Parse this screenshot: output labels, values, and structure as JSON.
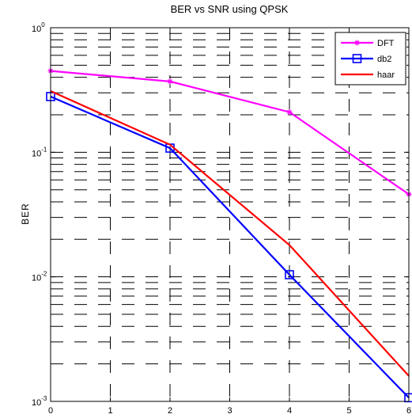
{
  "chart_data": {
    "type": "line",
    "title": "BER vs SNR using QPSK",
    "xlabel": "",
    "ylabel": "BER",
    "xlim": [
      0,
      6
    ],
    "ylim": [
      0.001,
      1
    ],
    "yscale": "log",
    "grid": true,
    "x_ticks": [
      "0",
      "1",
      "2",
      "3",
      "4",
      "5",
      "6"
    ],
    "y_ticks": [
      {
        "base": "10",
        "exp": "-3",
        "value": 0.001
      },
      {
        "base": "10",
        "exp": "-2",
        "value": 0.01
      },
      {
        "base": "10",
        "exp": "-1",
        "value": 0.1
      },
      {
        "base": "10",
        "exp": "0",
        "value": 1
      }
    ],
    "legend_position": "top-right",
    "series": [
      {
        "name": "DFT",
        "color": "#ff00ff",
        "marker": "star",
        "x": [
          0,
          2,
          4,
          6
        ],
        "y": [
          0.45,
          0.37,
          0.21,
          0.046
        ]
      },
      {
        "name": "db2",
        "color": "#0000ff",
        "marker": "square",
        "x": [
          0,
          2,
          4,
          6
        ],
        "y": [
          0.28,
          0.108,
          0.0104,
          0.00107
        ]
      },
      {
        "name": "haar",
        "color": "#ff0000",
        "marker": "none",
        "x": [
          0,
          2,
          4,
          6
        ],
        "y": [
          0.31,
          0.115,
          0.018,
          0.0016
        ]
      }
    ]
  }
}
